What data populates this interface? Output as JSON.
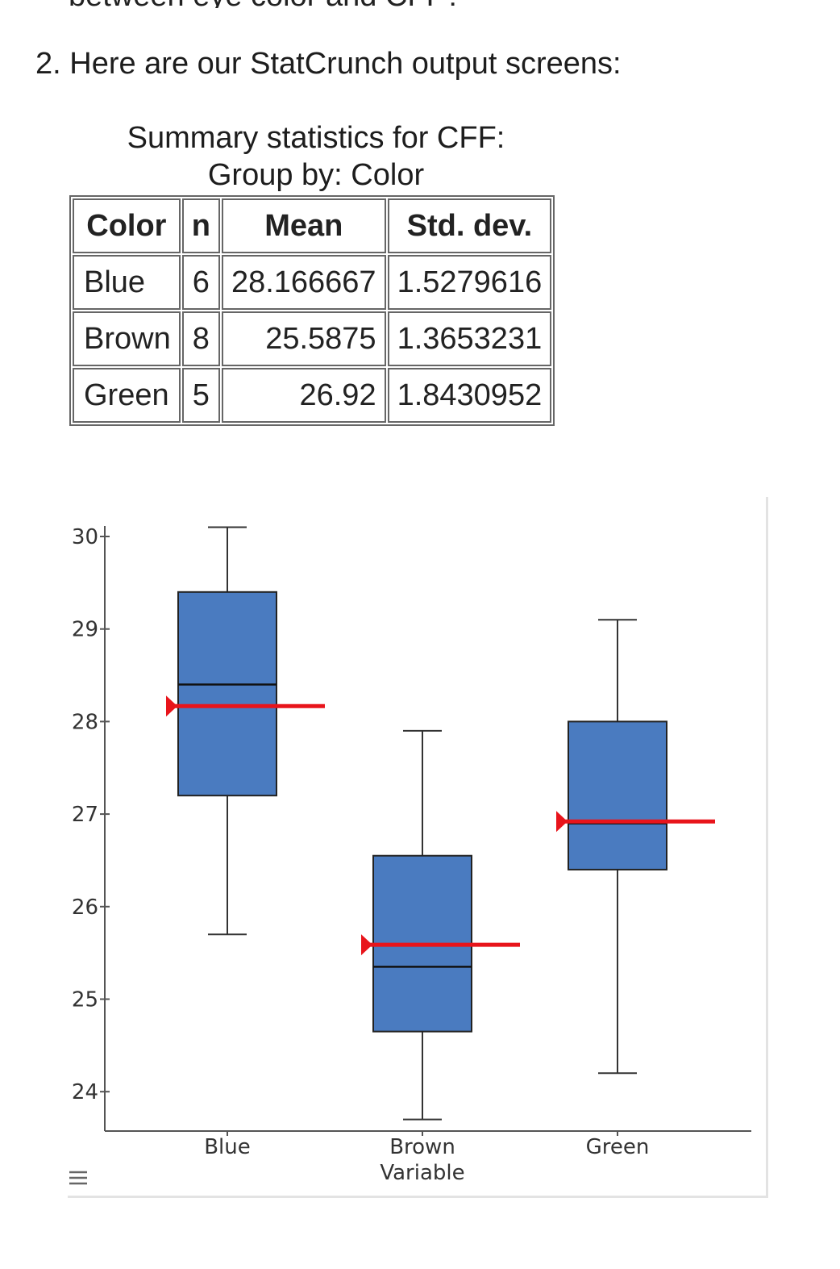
{
  "top_fragment": "between eye color and CFF?",
  "heading": "2. Here are our StatCrunch output screens:",
  "summary": {
    "title": "Summary statistics for CFF:",
    "group_by": "Group by: Color",
    "columns": [
      "Color",
      "n",
      "Mean",
      "Std. dev."
    ],
    "rows": [
      {
        "color": "Blue",
        "n": "6",
        "mean": "28.166667",
        "sd": "1.5279616"
      },
      {
        "color": "Brown",
        "n": "8",
        "mean": "25.5875",
        "sd": "1.3653231"
      },
      {
        "color": "Green",
        "n": "5",
        "mean": "26.92",
        "sd": "1.8430952"
      }
    ]
  },
  "menu_icon": "hamburger-menu-icon",
  "chart_data": {
    "type": "boxplot",
    "xlabel": "Variable",
    "ylabel": "",
    "ylim": [
      23.6,
      30.2
    ],
    "yticks": [
      24,
      25,
      26,
      27,
      28,
      29,
      30
    ],
    "categories": [
      "Blue",
      "Brown",
      "Green"
    ],
    "boxes": [
      {
        "name": "Blue",
        "min": 25.7,
        "q1": 27.2,
        "median": 28.4,
        "q3": 29.4,
        "max": 30.1,
        "mean": 28.166667
      },
      {
        "name": "Brown",
        "min": 23.7,
        "q1": 24.65,
        "median": 25.35,
        "q3": 26.55,
        "max": 27.9,
        "mean": 25.5875
      },
      {
        "name": "Green",
        "min": 24.2,
        "q1": 26.4,
        "median": 26.9,
        "q3": 28.0,
        "max": 29.1,
        "mean": 26.92
      }
    ],
    "box_color": "#4a7bc0",
    "mean_color": "#e8141b",
    "grid": false
  }
}
